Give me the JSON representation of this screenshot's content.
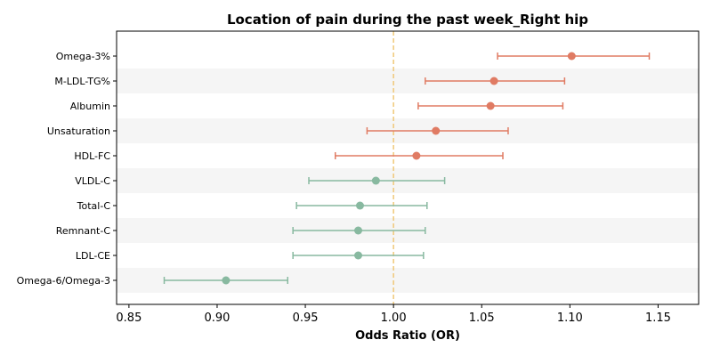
{
  "chart_data": {
    "type": "forest",
    "title": "Location of pain during the past week_Right hip",
    "xlabel": "Odds Ratio (OR)",
    "xlim": [
      0.843,
      1.173
    ],
    "xticks": [
      0.85,
      0.9,
      0.95,
      1.0,
      1.05,
      1.1,
      1.15
    ],
    "xtick_labels": [
      "0.85",
      "0.90",
      "0.95",
      "1.00",
      "1.05",
      "1.10",
      "1.15"
    ],
    "reference_line": 1.0,
    "colors": {
      "positive": "#E07B63",
      "negative": "#88B9A0",
      "reference": "#F0C878",
      "band": "#F5F5F5"
    },
    "rows": [
      {
        "label": "Omega-3%",
        "or": 1.101,
        "lower": 1.059,
        "upper": 1.145,
        "group": "positive"
      },
      {
        "label": "M-LDL-TG%",
        "or": 1.057,
        "lower": 1.018,
        "upper": 1.097,
        "group": "positive"
      },
      {
        "label": "Albumin",
        "or": 1.055,
        "lower": 1.014,
        "upper": 1.096,
        "group": "positive"
      },
      {
        "label": "Unsaturation",
        "or": 1.024,
        "lower": 0.985,
        "upper": 1.065,
        "group": "positive"
      },
      {
        "label": "HDL-FC",
        "or": 1.013,
        "lower": 0.967,
        "upper": 1.062,
        "group": "positive"
      },
      {
        "label": "VLDL-C",
        "or": 0.99,
        "lower": 0.952,
        "upper": 1.029,
        "group": "negative"
      },
      {
        "label": "Total-C",
        "or": 0.981,
        "lower": 0.945,
        "upper": 1.019,
        "group": "negative"
      },
      {
        "label": "Remnant-C",
        "or": 0.98,
        "lower": 0.943,
        "upper": 1.018,
        "group": "negative"
      },
      {
        "label": "LDL-CE",
        "or": 0.98,
        "lower": 0.943,
        "upper": 1.017,
        "group": "negative"
      },
      {
        "label": "Omega-6/Omega-3",
        "or": 0.905,
        "lower": 0.87,
        "upper": 0.94,
        "group": "negative"
      }
    ]
  }
}
